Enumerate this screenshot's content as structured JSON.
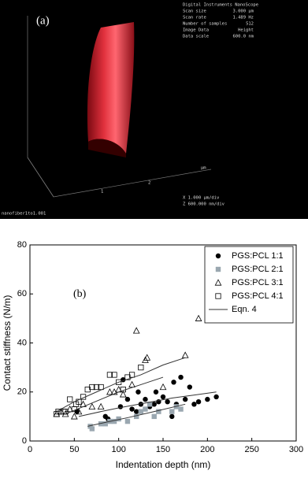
{
  "image_panel": {
    "label": "(a)",
    "header": "Digital Instruments NanoScope",
    "info": [
      [
        "Scan size",
        "3.000 µm"
      ],
      [
        "Scan rate",
        "1.489 Hz"
      ],
      [
        "Number of samples",
        "512"
      ],
      [
        "Image Data",
        "Height"
      ],
      [
        "Data scale",
        "600.0 nm"
      ]
    ],
    "axis_unit": "µm",
    "axis_ticks": [
      "1",
      "2"
    ],
    "scale_x": "X 1.000 µm/div",
    "scale_z": "Z 600.000 nm/div",
    "filename": "nanofiber1to1.001"
  },
  "chart_data": {
    "type": "scatter",
    "annotation": "(b)",
    "x_label": "Indentation depth (nm)",
    "y_label": "Contact stiffness (N/m)",
    "xlim": [
      0,
      300
    ],
    "xticks": [
      0,
      50,
      100,
      150,
      200,
      250,
      300
    ],
    "ylim": [
      0,
      80
    ],
    "yticks": [
      0,
      20,
      40,
      60,
      80
    ],
    "legend": "top-right",
    "series": [
      {
        "name": "PGS:PCL 1:1",
        "marker": "circle",
        "color": "#000000",
        "x": [
          53,
          85,
          88,
          102,
          105,
          110,
          115,
          120,
          122,
          125,
          130,
          135,
          140,
          142,
          145,
          150,
          155,
          160,
          162,
          165,
          170,
          175,
          180,
          185,
          190,
          200,
          210
        ],
        "values": [
          12,
          10,
          9,
          14,
          25,
          17,
          13,
          12,
          20,
          15,
          17,
          14,
          15,
          20,
          16,
          18,
          16,
          10,
          24,
          15,
          26,
          17,
          22,
          15,
          16,
          17,
          18
        ]
      },
      {
        "name": "PGS:PCL 2:1",
        "marker": "square",
        "color": "#9aa7b0",
        "x": [
          68,
          70,
          80,
          85,
          90,
          95,
          100,
          110,
          120,
          125,
          130,
          135,
          140,
          145,
          160,
          165,
          170
        ],
        "values": [
          6,
          5,
          7,
          7,
          8,
          8,
          9,
          8,
          10,
          12,
          13,
          15,
          10,
          12,
          12,
          14,
          13
        ]
      },
      {
        "name": "PGS:PCL 3:1",
        "marker": "triangle-open",
        "color": "#000000",
        "x": [
          30,
          35,
          40,
          45,
          50,
          55,
          60,
          70,
          80,
          90,
          95,
          100,
          105,
          115,
          120,
          130,
          132,
          150,
          175,
          190
        ],
        "values": [
          11,
          12,
          11,
          13,
          10,
          12,
          15,
          14,
          14,
          20,
          20,
          21,
          19,
          23,
          45,
          33,
          34,
          22,
          35,
          50
        ]
      },
      {
        "name": "PGS:PCL 4:1",
        "marker": "square-open",
        "color": "#000000",
        "x": [
          30,
          32,
          38,
          40,
          45,
          50,
          52,
          55,
          60,
          65,
          70,
          75,
          80,
          90,
          95,
          100,
          105,
          110,
          115,
          125
        ],
        "values": [
          11,
          12,
          12,
          12,
          17,
          13,
          15,
          16,
          18,
          21,
          22,
          22,
          22,
          27,
          27,
          24,
          21,
          26,
          27,
          30
        ]
      },
      {
        "name": "Eqn. 4",
        "marker": "line",
        "color": "#333333",
        "curves": [
          {
            "x": [
              30,
              50,
              75,
              100,
              125,
              150,
              175
            ],
            "values": [
              12,
              16,
              20,
              24,
              27,
              31,
              34
            ]
          },
          {
            "x": [
              40,
              60,
              80,
              100,
              125,
              150
            ],
            "values": [
              11,
              14,
              17,
              20,
              23,
              26
            ]
          },
          {
            "x": [
              55,
              80,
              100,
              130,
              160,
              210
            ],
            "values": [
              10,
              12,
              13.5,
              15.5,
              17.5,
              20
            ]
          },
          {
            "x": [
              65,
              90,
              110,
              140,
              175
            ],
            "values": [
              6,
              8,
              9.5,
              12,
              15
            ]
          }
        ]
      }
    ]
  }
}
